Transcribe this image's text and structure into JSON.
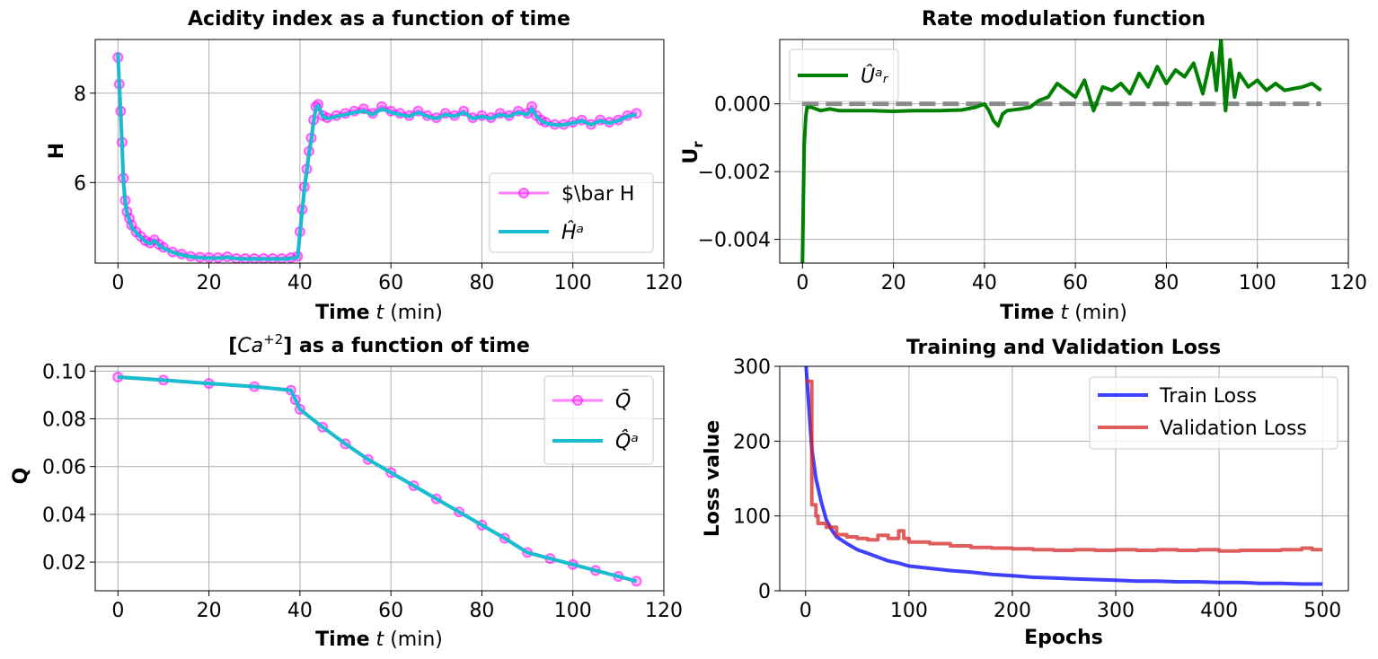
{
  "colors": {
    "magenta": "#ff00ff",
    "cyan": "#17becf",
    "green": "#008000",
    "gray_dashed": "#808080",
    "blue": "#0000ff",
    "red": "#d62728"
  },
  "chart_data": [
    {
      "type": "line",
      "title": "Acidity index as a function of time",
      "xlabel_bold": "Time",
      "xlabel_var": "t",
      "xlabel_unit": "(min)",
      "ylabel": "H",
      "xlim": [
        -5,
        120
      ],
      "ylim": [
        4.2,
        9.2
      ],
      "xticks": [
        0,
        20,
        40,
        60,
        80,
        100,
        120
      ],
      "yticks": [
        6,
        8
      ],
      "grid": true,
      "legend_position": "lower-right",
      "series": [
        {
          "name": "$\\bar H",
          "style": "line-markers",
          "x": [
            0,
            0.3,
            0.6,
            0.9,
            1.2,
            1.6,
            2,
            2.5,
            3,
            4,
            5,
            6,
            7,
            8,
            9,
            10,
            12,
            14,
            16,
            18,
            20,
            22,
            24,
            26,
            28,
            30,
            32,
            34,
            36,
            38,
            39.5,
            40,
            40.5,
            41,
            41.5,
            42,
            42.5,
            43,
            43.5,
            44,
            45,
            46,
            48,
            50,
            52,
            54,
            56,
            58,
            60,
            62,
            64,
            66,
            68,
            70,
            72,
            74,
            76,
            78,
            80,
            82,
            84,
            86,
            88,
            90,
            91,
            92,
            93,
            94,
            96,
            98,
            100,
            102,
            104,
            106,
            108,
            110,
            112,
            114
          ],
          "y": [
            8.8,
            8.2,
            7.6,
            6.9,
            6.1,
            5.6,
            5.35,
            5.2,
            5.05,
            4.9,
            4.8,
            4.7,
            4.65,
            4.72,
            4.62,
            4.55,
            4.45,
            4.4,
            4.35,
            4.33,
            4.32,
            4.32,
            4.34,
            4.3,
            4.3,
            4.3,
            4.3,
            4.3,
            4.3,
            4.32,
            4.35,
            4.9,
            5.4,
            5.9,
            6.3,
            6.7,
            7.0,
            7.4,
            7.7,
            7.75,
            7.5,
            7.45,
            7.5,
            7.55,
            7.6,
            7.65,
            7.55,
            7.7,
            7.6,
            7.55,
            7.5,
            7.6,
            7.5,
            7.45,
            7.55,
            7.5,
            7.6,
            7.45,
            7.5,
            7.45,
            7.55,
            7.5,
            7.6,
            7.55,
            7.7,
            7.5,
            7.4,
            7.35,
            7.3,
            7.3,
            7.35,
            7.4,
            7.3,
            7.4,
            7.35,
            7.4,
            7.5,
            7.55
          ]
        },
        {
          "name": "Ĥᵃ",
          "style": "line",
          "x": [
            0,
            0.3,
            0.6,
            0.9,
            1.2,
            1.6,
            2,
            2.5,
            3,
            4,
            5,
            6,
            7,
            8,
            9,
            10,
            12,
            14,
            16,
            18,
            20,
            22,
            24,
            26,
            28,
            30,
            32,
            34,
            36,
            38,
            39.5,
            40,
            40.5,
            41,
            41.5,
            42,
            42.5,
            43,
            43.5,
            44,
            45,
            46,
            48,
            50,
            52,
            54,
            56,
            58,
            60,
            62,
            64,
            66,
            68,
            70,
            72,
            74,
            76,
            78,
            80,
            82,
            84,
            86,
            88,
            90,
            91,
            92,
            93,
            94,
            96,
            98,
            100,
            102,
            104,
            106,
            108,
            110,
            112,
            114
          ],
          "y": [
            8.9,
            8.2,
            7.5,
            6.8,
            6.0,
            5.55,
            5.3,
            5.15,
            5.0,
            4.88,
            4.78,
            4.68,
            4.63,
            4.7,
            4.6,
            4.53,
            4.44,
            4.38,
            4.34,
            4.32,
            4.31,
            4.31,
            4.33,
            4.3,
            4.29,
            4.29,
            4.29,
            4.29,
            4.29,
            4.3,
            4.33,
            4.85,
            5.35,
            5.85,
            6.25,
            6.65,
            6.95,
            7.35,
            7.65,
            7.72,
            7.48,
            7.43,
            7.48,
            7.52,
            7.57,
            7.6,
            7.52,
            7.65,
            7.57,
            7.52,
            7.48,
            7.57,
            7.48,
            7.43,
            7.52,
            7.48,
            7.57,
            7.43,
            7.48,
            7.43,
            7.52,
            7.48,
            7.57,
            7.52,
            7.65,
            7.48,
            7.38,
            7.33,
            7.29,
            7.29,
            7.33,
            7.38,
            7.29,
            7.38,
            7.33,
            7.38,
            7.48,
            7.52
          ]
        }
      ]
    },
    {
      "type": "line",
      "title": "Rate modulation function",
      "xlabel_bold": "Time",
      "xlabel_var": "t",
      "xlabel_unit": "(min)",
      "ylabel": "U",
      "ylabel_sub": "r",
      "xlim": [
        -5,
        120
      ],
      "ylim": [
        -0.0047,
        0.0019
      ],
      "xticks": [
        0,
        20,
        40,
        60,
        80,
        100,
        120
      ],
      "yticks": [
        0.0,
        -0.002,
        -0.004
      ],
      "ytick_labels": [
        "0.000",
        "−0.002",
        "−0.004"
      ],
      "grid": true,
      "legend_position": "upper-left",
      "reference_line_y": 0,
      "series": [
        {
          "name": "Ûᵃᵣ",
          "style": "line",
          "x": [
            0,
            0.2,
            0.4,
            0.7,
            1,
            2,
            4,
            6,
            8,
            10,
            15,
            20,
            25,
            30,
            35,
            38,
            40,
            41,
            42,
            43,
            44,
            45,
            48,
            50,
            52,
            54,
            56,
            58,
            60,
            62,
            64,
            66,
            68,
            70,
            72,
            74,
            76,
            78,
            80,
            82,
            84,
            86,
            88,
            90,
            91,
            92,
            93,
            94,
            95,
            96,
            98,
            100,
            102,
            104,
            106,
            108,
            110,
            112,
            114
          ],
          "y": [
            -0.0047,
            -0.0028,
            -0.0012,
            -0.0004,
            -0.0001,
            -0.0001,
            -0.0002,
            -0.00015,
            -0.0002,
            -0.0002,
            -0.0002,
            -0.00022,
            -0.0002,
            -0.0002,
            -0.00018,
            -0.0001,
            0.0,
            -0.0002,
            -0.0005,
            -0.00065,
            -0.0003,
            -0.0002,
            -0.00015,
            -0.0001,
            0.0001,
            0.0002,
            0.0006,
            0.0004,
            0.0002,
            0.0007,
            -0.0002,
            0.0005,
            0.0004,
            0.0006,
            0.0003,
            0.0009,
            0.0005,
            0.0011,
            0.0006,
            0.001,
            0.0008,
            0.0012,
            0.0003,
            0.0015,
            0.0004,
            0.0019,
            -0.0002,
            0.0013,
            0.0002,
            0.0009,
            0.0005,
            0.0007,
            0.0004,
            0.0006,
            0.0004,
            0.00045,
            0.0005,
            0.0006,
            0.0004
          ]
        }
      ]
    },
    {
      "type": "line",
      "title_prefix": "[",
      "title_math": "Ca",
      "title_sup": "+2",
      "title_suffix": "] as a function of time",
      "xlabel_bold": "Time",
      "xlabel_var": "t",
      "xlabel_unit": "(min)",
      "ylabel": "Q",
      "xlim": [
        -5,
        120
      ],
      "ylim": [
        0.008,
        0.102
      ],
      "xticks": [
        0,
        20,
        40,
        60,
        80,
        100,
        120
      ],
      "yticks": [
        0.02,
        0.04,
        0.06,
        0.08,
        0.1
      ],
      "ytick_labels": [
        "0.02",
        "0.04",
        "0.06",
        "0.08",
        "0.10"
      ],
      "grid": true,
      "legend_position": "upper-right",
      "series": [
        {
          "name": "Q̄",
          "style": "line-markers",
          "x": [
            0,
            10,
            20,
            30,
            38,
            39,
            40,
            45,
            50,
            55,
            60,
            65,
            70,
            75,
            80,
            85,
            90,
            95,
            100,
            105,
            110,
            114
          ],
          "y": [
            0.0975,
            0.0962,
            0.0948,
            0.0935,
            0.092,
            0.088,
            0.084,
            0.0765,
            0.0695,
            0.063,
            0.0575,
            0.052,
            0.0465,
            0.041,
            0.0355,
            0.03,
            0.024,
            0.0215,
            0.019,
            0.0165,
            0.014,
            0.012
          ]
        },
        {
          "name": "Q̂ᵃ",
          "style": "line",
          "x": [
            0,
            10,
            20,
            30,
            38,
            39,
            40,
            45,
            50,
            55,
            60,
            65,
            70,
            75,
            80,
            85,
            90,
            95,
            100,
            105,
            110,
            114
          ],
          "y": [
            0.0975,
            0.0962,
            0.0948,
            0.0935,
            0.092,
            0.088,
            0.084,
            0.0765,
            0.0695,
            0.063,
            0.0575,
            0.052,
            0.0465,
            0.041,
            0.0355,
            0.03,
            0.024,
            0.0215,
            0.019,
            0.0165,
            0.014,
            0.012
          ]
        }
      ]
    },
    {
      "type": "line",
      "title": "Training and Validation Loss",
      "xlabel": "Epochs",
      "ylabel": "Loss value",
      "xlim": [
        -25,
        525
      ],
      "ylim": [
        0,
        300
      ],
      "xticks": [
        0,
        100,
        200,
        300,
        400,
        500
      ],
      "yticks": [
        0,
        100,
        200,
        300
      ],
      "grid": true,
      "legend_position": "upper-right",
      "series": [
        {
          "name": "Train Loss",
          "style": "line",
          "x": [
            0,
            3,
            6,
            10,
            15,
            20,
            25,
            30,
            40,
            50,
            60,
            70,
            80,
            90,
            100,
            120,
            140,
            160,
            180,
            200,
            220,
            240,
            260,
            280,
            300,
            320,
            340,
            360,
            380,
            400,
            420,
            440,
            460,
            480,
            500
          ],
          "y": [
            310,
            250,
            190,
            150,
            120,
            95,
            82,
            72,
            63,
            55,
            50,
            45,
            40,
            37,
            33,
            30,
            27,
            25,
            22,
            20,
            18,
            17,
            16,
            15,
            14,
            13,
            13,
            12,
            12,
            11,
            11,
            10,
            10,
            9,
            9
          ]
        },
        {
          "name": "Validation Loss",
          "style": "line",
          "x": [
            0,
            5,
            6,
            10,
            12,
            20,
            30,
            40,
            50,
            60,
            70,
            80,
            90,
            95,
            100,
            120,
            140,
            160,
            180,
            200,
            220,
            240,
            260,
            280,
            300,
            320,
            340,
            360,
            380,
            400,
            420,
            440,
            460,
            480,
            490,
            500
          ],
          "y": [
            280,
            280,
            115,
            100,
            90,
            85,
            75,
            72,
            70,
            68,
            74,
            70,
            80,
            70,
            65,
            63,
            60,
            58,
            57,
            56,
            55,
            54,
            55,
            54,
            55,
            54,
            55,
            54,
            55,
            53,
            54,
            54,
            55,
            57,
            55,
            55
          ]
        }
      ]
    }
  ]
}
